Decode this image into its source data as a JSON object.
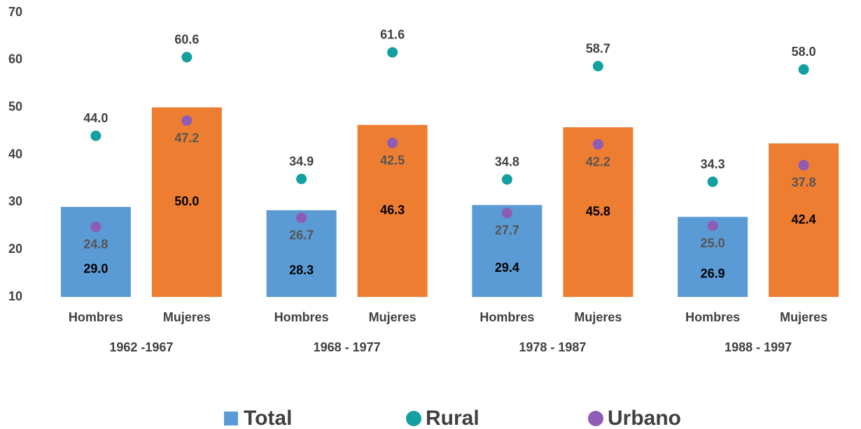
{
  "chart_data": {
    "type": "bar",
    "categories": [
      "Hombres",
      "Mujeres",
      "Hombres",
      "Mujeres",
      "Hombres",
      "Mujeres",
      "Hombres",
      "Mujeres"
    ],
    "groups": [
      "1962 -1967",
      "1968 - 1977",
      "1978 - 1987",
      "1988 - 1997"
    ],
    "bar_colors": [
      "#5b9bd5",
      "#ed7d31"
    ],
    "series": [
      {
        "name": "Total",
        "color": "#5b9bd5",
        "values": [
          29.0,
          50.0,
          28.3,
          46.3,
          29.4,
          45.8,
          26.9,
          42.4
        ],
        "value_labels": [
          "29.0",
          "50.0",
          "28.3",
          "46.3",
          "29.4",
          "45.8",
          "26.9",
          "42.4"
        ]
      },
      {
        "name": "Rural",
        "color": "#14a0a0",
        "values": [
          44.0,
          60.6,
          34.9,
          61.6,
          34.8,
          58.7,
          34.3,
          58.0
        ],
        "value_labels": [
          "44.0",
          "60.6",
          "34.9",
          "61.6",
          "34.8",
          "58.7",
          "34.3",
          "58.0"
        ]
      },
      {
        "name": "Urbano",
        "color": "#8e5bb5",
        "values": [
          24.8,
          47.2,
          26.7,
          42.5,
          27.7,
          42.2,
          25.0,
          37.8
        ],
        "value_labels": [
          "24.8",
          "47.2",
          "26.7",
          "42.5",
          "27.7",
          "42.2",
          "25.0",
          "37.8"
        ]
      }
    ],
    "ylim": [
      10,
      70
    ],
    "yticks": [
      10,
      20,
      30,
      40,
      50,
      60,
      70
    ],
    "grid": false
  }
}
